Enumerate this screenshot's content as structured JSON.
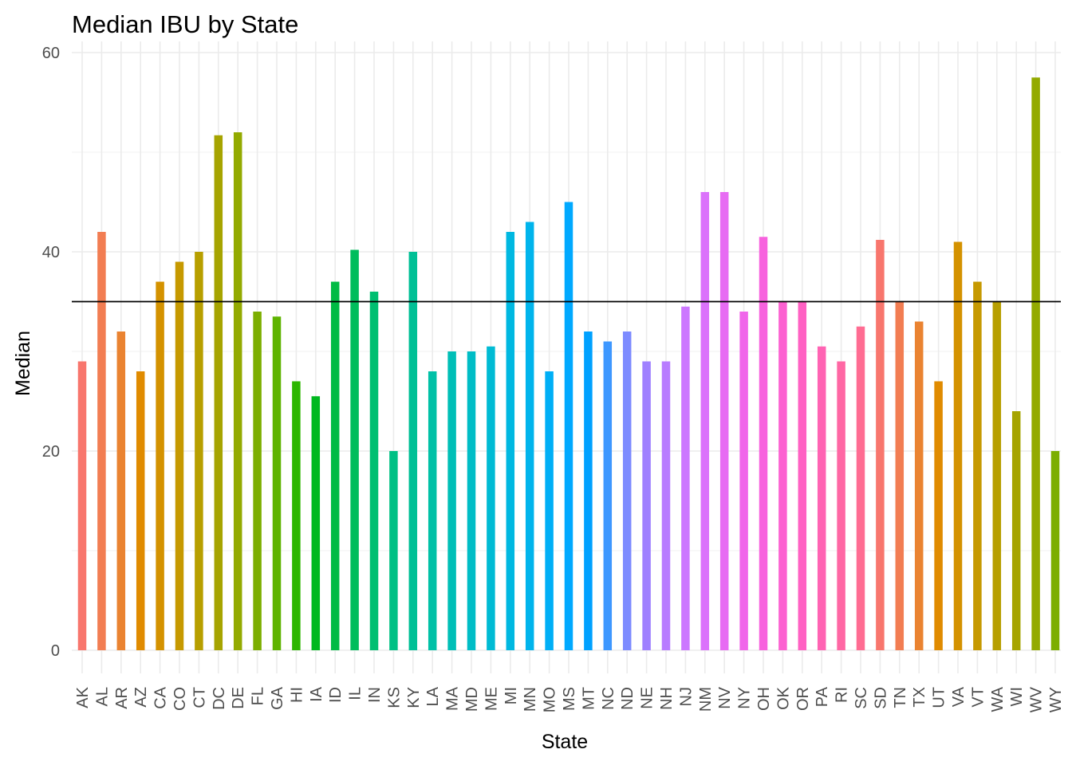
{
  "chart_data": {
    "type": "bar",
    "title": "Median IBU by State",
    "xlabel": "State",
    "ylabel": "Median",
    "ylim": [
      -3,
      60
    ],
    "yticks": [
      0,
      20,
      40,
      60
    ],
    "reference_line": 35,
    "grid": true,
    "legend": "none",
    "categories": [
      "AK",
      "AL",
      "AR",
      "AZ",
      "CA",
      "CO",
      "CT",
      "DC",
      "DE",
      "FL",
      "GA",
      "HI",
      "IA",
      "ID",
      "IL",
      "IN",
      "KS",
      "KY",
      "LA",
      "MA",
      "MD",
      "ME",
      "MI",
      "MN",
      "MO",
      "MS",
      "MT",
      "NC",
      "ND",
      "NE",
      "NH",
      "NJ",
      "NM",
      "NV",
      "NY",
      "OH",
      "OK",
      "OR",
      "PA",
      "RI",
      "SC",
      "SD",
      "TN",
      "TX",
      "UT",
      "VA",
      "VT",
      "WA",
      "WI",
      "WV",
      "WY"
    ],
    "values": [
      29,
      42,
      32,
      28,
      37,
      39,
      40,
      51.7,
      52,
      34,
      33.5,
      27,
      25.5,
      37,
      40.2,
      36,
      20,
      40,
      28,
      30,
      30,
      30.5,
      42,
      43,
      28,
      45,
      32,
      31,
      32,
      29,
      29,
      34.5,
      46,
      46,
      34,
      41.5,
      35,
      35,
      30.5,
      29,
      32.5,
      41.2,
      35,
      33,
      27,
      41,
      37,
      35,
      24,
      57.5,
      20
    ],
    "colors": [
      "#F8766D",
      "#F27D52",
      "#EA8331",
      "#E08B00",
      "#D49200",
      "#C69900",
      "#B79F00",
      "#A6A400",
      "#93AA00",
      "#7CAE00",
      "#5EB300",
      "#2DB600",
      "#00B81F",
      "#00BB44",
      "#00BD5C",
      "#00BF71",
      "#00C084",
      "#00C096",
      "#00C1A7",
      "#00BFB7",
      "#00BDC6",
      "#00BBD4",
      "#00B8E1",
      "#00B4EC",
      "#00AFF6",
      "#00A9FF",
      "#00A1FF",
      "#3D97FF",
      "#7D8BFF",
      "#9F80FF",
      "#B87CFF",
      "#CC77FF",
      "#DB72FB",
      "#E76BF3",
      "#F066EA",
      "#F762DE",
      "#FC61D1",
      "#FF61C3",
      "#FF63B3",
      "#FF67A4",
      "#FF6C92",
      "#F8766D",
      "#F27D52",
      "#EA8331",
      "#E08B00",
      "#D49200",
      "#C69900",
      "#B79F00",
      "#A6A400",
      "#93AA00",
      "#7CAE00"
    ]
  }
}
